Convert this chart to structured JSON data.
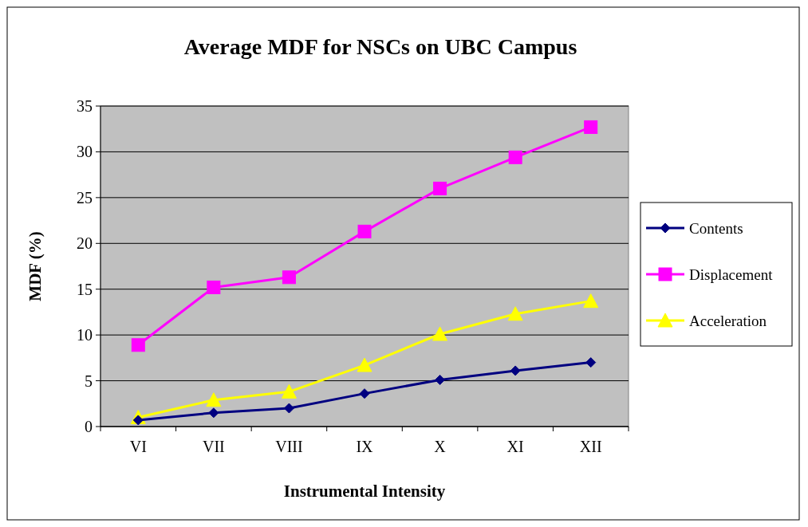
{
  "chart_data": {
    "type": "line",
    "title": "Average MDF for NSCs on UBC Campus",
    "xlabel": "Instrumental Intensity",
    "ylabel": "MDF (%)",
    "categories": [
      "VI",
      "VII",
      "VIII",
      "IX",
      "X",
      "XI",
      "XII"
    ],
    "series": [
      {
        "name": "Contents",
        "color": "#000080",
        "marker": "diamond",
        "values": [
          0.7,
          1.5,
          2.0,
          3.6,
          5.1,
          6.1,
          7.0
        ]
      },
      {
        "name": "Displacement",
        "color": "#ff00ff",
        "marker": "square",
        "values": [
          8.9,
          15.2,
          16.3,
          21.3,
          26.0,
          29.4,
          32.7
        ]
      },
      {
        "name": "Acceleration",
        "color": "#ffff00",
        "marker": "triangle",
        "values": [
          1.0,
          2.9,
          3.8,
          6.7,
          10.1,
          12.3,
          13.7
        ]
      }
    ],
    "ylim": [
      0,
      35
    ],
    "yticks": [
      0,
      5,
      10,
      15,
      20,
      25,
      30,
      35
    ],
    "grid": "y",
    "legend": "right"
  }
}
